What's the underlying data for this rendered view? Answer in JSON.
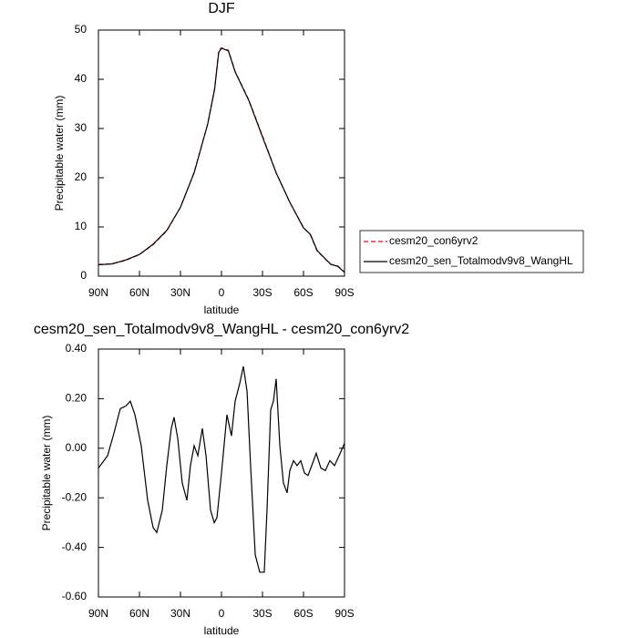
{
  "chart_data": [
    {
      "type": "line",
      "title": "DJF",
      "xlabel": "latitude",
      "ylabel": "Precipitable water (mm)",
      "x": [
        90,
        80,
        70,
        60,
        50,
        40,
        30,
        20,
        10,
        5,
        2,
        0,
        -5,
        -10,
        -20,
        -30,
        -40,
        -50,
        -60,
        -65,
        -70,
        -80,
        -85,
        -90
      ],
      "series": [
        {
          "name": "cesm20_con6yrv2",
          "color": "#ff0000",
          "line_style": "dashed",
          "values": [
            2.4,
            2.5,
            3.2,
            4.4,
            6.4,
            9.2,
            14,
            21.1,
            31,
            38.2,
            45.8,
            46.4,
            45.9,
            41.6,
            35.8,
            28.5,
            21,
            15,
            9.9,
            8.4,
            5.1,
            2.4,
            2.1,
            0.8
          ]
        },
        {
          "name": "cesm20_sen_Totalmodv9v8_WangHL",
          "color": "#000000",
          "line_style": "solid",
          "values": [
            2.3,
            2.5,
            3.3,
            4.4,
            6.5,
            9.3,
            14,
            21,
            31,
            38,
            45.5,
            46.3,
            45.8,
            41.5,
            35.7,
            28.3,
            21,
            15,
            9.8,
            8.5,
            5.2,
            2.4,
            2,
            0.8
          ]
        }
      ],
      "xlim": [
        90,
        -90
      ],
      "xticks": [
        {
          "value": 90,
          "label": "90N"
        },
        {
          "value": 60,
          "label": "60N"
        },
        {
          "value": 30,
          "label": "30N"
        },
        0,
        {
          "value": -30,
          "label": "30S"
        },
        {
          "value": -60,
          "label": "60S"
        },
        {
          "value": -90,
          "label": "90S"
        }
      ],
      "ylim": [
        0,
        50
      ],
      "yticks": [
        0,
        10,
        20,
        30,
        40,
        50
      ],
      "legend": "right"
    },
    {
      "type": "line",
      "title": "cesm20_sen_Totalmodv9v8_WangHL - cesm20_con6yrv2",
      "xlabel": "latitude",
      "ylabel": "Precipitable water (mm)",
      "x": [
        90,
        83.3,
        78.7,
        74,
        70,
        66.7,
        63.3,
        58.7,
        54,
        50,
        47.3,
        43.3,
        40,
        36.7,
        34.7,
        32,
        28.7,
        25.3,
        22.7,
        20,
        17.3,
        14,
        11.3,
        8,
        5.3,
        3.3,
        0,
        -4,
        -7.3,
        -10,
        -13.3,
        -16,
        -18.7,
        -21.3,
        -24.7,
        -28,
        -31.3,
        -33.3,
        -36,
        -38,
        -40,
        -42.7,
        -45.3,
        -48,
        -50,
        -52.7,
        -55.3,
        -58,
        -60.7,
        -63.3,
        -66.7,
        -69.3,
        -72.7,
        -76,
        -79.3,
        -82.7,
        -86,
        -90
      ],
      "values": [
        -0.08,
        -0.03,
        0.06,
        0.16,
        0.17,
        0.19,
        0.135,
        0.01,
        -0.21,
        -0.32,
        -0.34,
        -0.25,
        -0.07,
        0.08,
        0.125,
        0.04,
        -0.14,
        -0.21,
        -0.07,
        0.01,
        -0.03,
        0.08,
        -0.03,
        -0.25,
        -0.3,
        -0.28,
        -0.1,
        0.135,
        0.05,
        0.19,
        0.26,
        0.33,
        0.23,
        -0.07,
        -0.43,
        -0.5,
        -0.5,
        -0.25,
        0.155,
        0.19,
        0.28,
        0.01,
        -0.14,
        -0.18,
        -0.09,
        -0.05,
        -0.07,
        -0.05,
        -0.1,
        -0.11,
        -0.06,
        -0.02,
        -0.08,
        -0.09,
        -0.05,
        -0.07,
        -0.03,
        0.02
      ],
      "color": "#000000",
      "xlim": [
        90,
        -90
      ],
      "xticks": [
        {
          "value": 90,
          "label": "90N"
        },
        {
          "value": 60,
          "label": "60N"
        },
        {
          "value": 30,
          "label": "30N"
        },
        0,
        {
          "value": -30,
          "label": "30S"
        },
        {
          "value": -60,
          "label": "60S"
        },
        {
          "value": -90,
          "label": "90S"
        }
      ],
      "ylim": [
        -0.6,
        0.4
      ],
      "yticks": [
        {
          "value": 0.4,
          "label": "0.40"
        },
        {
          "value": 0.2,
          "label": "0.20"
        },
        {
          "value": 0,
          "label": "0.00"
        },
        {
          "value": -0.2,
          "label": "-0.20"
        },
        {
          "value": -0.4,
          "label": "-0.40"
        },
        {
          "value": -0.6,
          "label": "-0.60"
        }
      ]
    }
  ]
}
